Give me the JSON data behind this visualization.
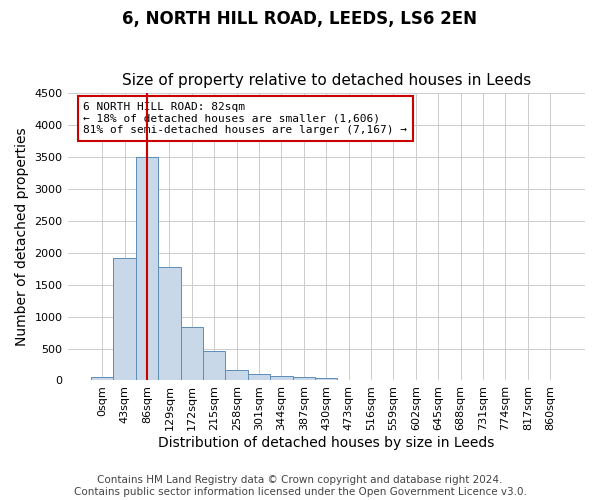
{
  "title": "6, NORTH HILL ROAD, LEEDS, LS6 2EN",
  "subtitle": "Size of property relative to detached houses in Leeds",
  "xlabel": "Distribution of detached houses by size in Leeds",
  "ylabel": "Number of detached properties",
  "bar_color": "#c8d8e8",
  "bar_edge_color": "#5b8db8",
  "annotation_box_color": "#cc0000",
  "vline_color": "#cc0000",
  "vline_x": 2,
  "annotation_title": "6 NORTH HILL ROAD: 82sqm",
  "annotation_line1": "← 18% of detached houses are smaller (1,606)",
  "annotation_line2": "81% of semi-detached houses are larger (7,167) →",
  "footer_line1": "Contains HM Land Registry data © Crown copyright and database right 2024.",
  "footer_line2": "Contains public sector information licensed under the Open Government Licence v3.0.",
  "bin_labels": [
    "0sqm",
    "43sqm",
    "86sqm",
    "129sqm",
    "172sqm",
    "215sqm",
    "258sqm",
    "301sqm",
    "344sqm",
    "387sqm",
    "430sqm",
    "473sqm",
    "516sqm",
    "559sqm",
    "602sqm",
    "645sqm",
    "688sqm",
    "731sqm",
    "774sqm",
    "817sqm",
    "860sqm"
  ],
  "bar_heights": [
    50,
    1920,
    3500,
    1780,
    840,
    460,
    165,
    100,
    75,
    55,
    45,
    0,
    0,
    0,
    0,
    0,
    0,
    0,
    0,
    0,
    0
  ],
  "ylim": [
    0,
    4500
  ],
  "yticks": [
    0,
    500,
    1000,
    1500,
    2000,
    2500,
    3000,
    3500,
    4000,
    4500
  ],
  "background_color": "#ffffff",
  "grid_color": "#cccccc",
  "title_fontsize": 12,
  "subtitle_fontsize": 11,
  "axis_label_fontsize": 10,
  "tick_fontsize": 8,
  "footer_fontsize": 7.5
}
